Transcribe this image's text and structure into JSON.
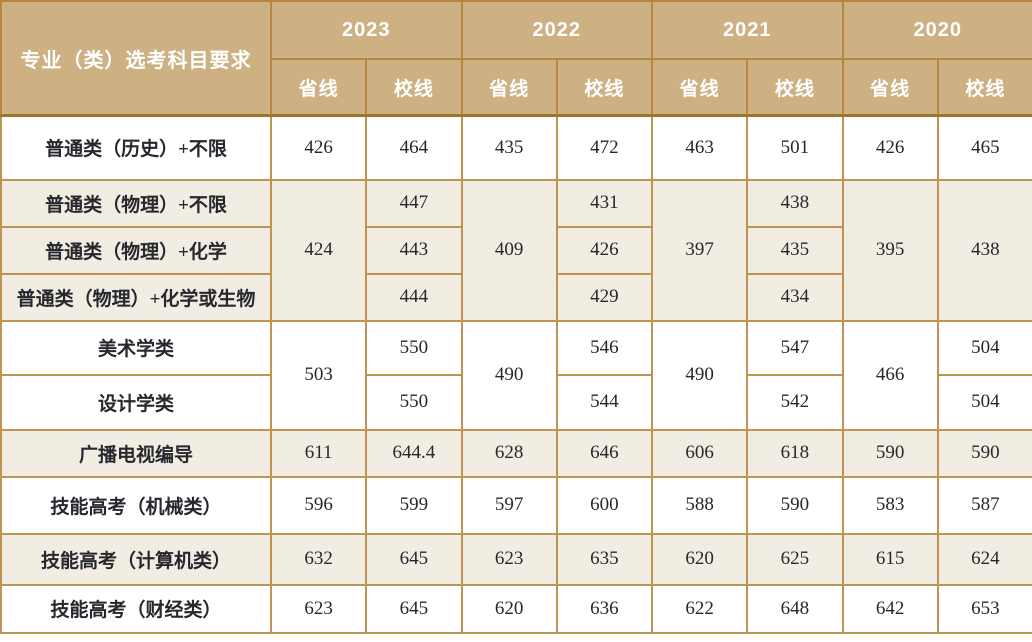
{
  "colors": {
    "header_bg": "#CDB183",
    "header_border": "#B6873C",
    "outer_border": "#9E742E",
    "grid_border": "#BE9450",
    "shade_row_bg": "#F2EDE3",
    "header_text": "#FFFFFF",
    "body_text": "#27272E"
  },
  "table": {
    "corner_header": "专业（类）选考科目要求",
    "year_groups": [
      {
        "year": "2023",
        "sub": [
          "省线",
          "校线"
        ]
      },
      {
        "year": "2022",
        "sub": [
          "省线",
          "校线"
        ]
      },
      {
        "year": "2021",
        "sub": [
          "省线",
          "校线"
        ]
      },
      {
        "year": "2020",
        "sub": [
          "省线",
          "校线"
        ]
      }
    ],
    "rows": [
      {
        "label": "普通类（历史）+不限",
        "shade": false,
        "cells": [
          {
            "v": "426"
          },
          {
            "v": "464"
          },
          {
            "v": "435"
          },
          {
            "v": "472"
          },
          {
            "v": "463"
          },
          {
            "v": "501"
          },
          {
            "v": "426"
          },
          {
            "v": "465"
          }
        ]
      },
      {
        "label": "普通类（物理）+不限",
        "shade": true,
        "cells": [
          {
            "v": "424",
            "rowspan": 3
          },
          {
            "v": "447"
          },
          {
            "v": "409",
            "rowspan": 3
          },
          {
            "v": "431"
          },
          {
            "v": "397",
            "rowspan": 3
          },
          {
            "v": "438"
          },
          {
            "v": "395",
            "rowspan": 3
          },
          {
            "v": "438",
            "rowspan": 3
          }
        ]
      },
      {
        "label": "普通类（物理）+化学",
        "shade": true,
        "cells": [
          {
            "v": "443"
          },
          {
            "v": "426"
          },
          {
            "v": "435"
          }
        ]
      },
      {
        "label": "普通类（物理）+化学或生物",
        "shade": true,
        "cells": [
          {
            "v": "444"
          },
          {
            "v": "429"
          },
          {
            "v": "434"
          }
        ]
      },
      {
        "label": "美术学类",
        "shade": false,
        "cells": [
          {
            "v": "503",
            "rowspan": 2
          },
          {
            "v": "550"
          },
          {
            "v": "490",
            "rowspan": 2
          },
          {
            "v": "546"
          },
          {
            "v": "490",
            "rowspan": 2
          },
          {
            "v": "547"
          },
          {
            "v": "466",
            "rowspan": 2
          },
          {
            "v": "504"
          }
        ]
      },
      {
        "label": "设计学类",
        "shade": false,
        "cells": [
          {
            "v": "550"
          },
          {
            "v": "544"
          },
          {
            "v": "542"
          },
          {
            "v": "504"
          }
        ]
      },
      {
        "label": "广播电视编导",
        "shade": true,
        "cells": [
          {
            "v": "611"
          },
          {
            "v": "644.4"
          },
          {
            "v": "628"
          },
          {
            "v": "646"
          },
          {
            "v": "606"
          },
          {
            "v": "618"
          },
          {
            "v": "590"
          },
          {
            "v": "590"
          }
        ]
      },
      {
        "label": "技能高考（机械类）",
        "shade": false,
        "cells": [
          {
            "v": "596"
          },
          {
            "v": "599"
          },
          {
            "v": "597"
          },
          {
            "v": "600"
          },
          {
            "v": "588"
          },
          {
            "v": "590"
          },
          {
            "v": "583"
          },
          {
            "v": "587"
          }
        ]
      },
      {
        "label": "技能高考（计算机类）",
        "shade": true,
        "cells": [
          {
            "v": "632"
          },
          {
            "v": "645"
          },
          {
            "v": "623"
          },
          {
            "v": "635"
          },
          {
            "v": "620"
          },
          {
            "v": "625"
          },
          {
            "v": "615"
          },
          {
            "v": "624"
          }
        ]
      },
      {
        "label": "技能高考（财经类）",
        "shade": false,
        "cells": [
          {
            "v": "623"
          },
          {
            "v": "645"
          },
          {
            "v": "620"
          },
          {
            "v": "636"
          },
          {
            "v": "622"
          },
          {
            "v": "648"
          },
          {
            "v": "642"
          },
          {
            "v": "653"
          }
        ]
      }
    ]
  },
  "chart_data": {
    "type": "table",
    "columns": [
      "专业（类）选考科目要求",
      "2023省线",
      "2023校线",
      "2022省线",
      "2022校线",
      "2021省线",
      "2021校线",
      "2020省线",
      "2020校线"
    ],
    "rows": [
      [
        "普通类（历史）+不限",
        426,
        464,
        435,
        472,
        463,
        501,
        426,
        465
      ],
      [
        "普通类（物理）+不限",
        424,
        447,
        409,
        431,
        397,
        438,
        395,
        438
      ],
      [
        "普通类（物理）+化学",
        424,
        443,
        409,
        426,
        397,
        435,
        395,
        438
      ],
      [
        "普通类（物理）+化学或生物",
        424,
        444,
        409,
        429,
        397,
        434,
        395,
        438
      ],
      [
        "美术学类",
        503,
        550,
        490,
        546,
        490,
        547,
        466,
        504
      ],
      [
        "设计学类",
        503,
        550,
        490,
        544,
        490,
        542,
        466,
        504
      ],
      [
        "广播电视编导",
        611,
        644.4,
        628,
        646,
        606,
        618,
        590,
        590
      ],
      [
        "技能高考（机械类）",
        596,
        599,
        597,
        600,
        588,
        590,
        583,
        587
      ],
      [
        "技能高考（计算机类）",
        632,
        645,
        623,
        635,
        620,
        625,
        615,
        624
      ],
      [
        "技能高考（财经类）",
        623,
        645,
        620,
        636,
        622,
        648,
        642,
        653
      ]
    ]
  }
}
